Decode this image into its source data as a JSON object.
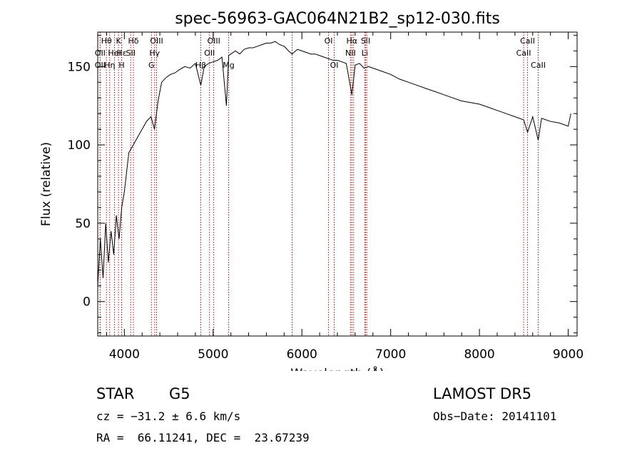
{
  "chart_data": {
    "type": "line",
    "title": "spec-56963-GAC064N21B2_sp12-030.fits",
    "xlabel": "Wavelength (Å)",
    "ylabel": "Flux (relative)",
    "xlim": [
      3700,
      9100
    ],
    "ylim": [
      -22,
      172
    ],
    "xticks": [
      4000,
      5000,
      6000,
      7000,
      8000,
      9000
    ],
    "yticks": [
      0,
      50,
      100,
      150
    ],
    "grid": false,
    "series": [
      {
        "x": [
          3700,
          3730,
          3760,
          3790,
          3820,
          3850,
          3880,
          3910,
          3940,
          3970,
          4000,
          4050,
          4100,
          4150,
          4200,
          4250,
          4300,
          4340,
          4380,
          4420,
          4470,
          4520,
          4570,
          4620,
          4680,
          4740,
          4800,
          4861,
          4900,
          4950,
          5000,
          5050,
          5100,
          5150,
          5175,
          5200,
          5250,
          5300,
          5350,
          5400,
          5450,
          5500,
          5550,
          5600,
          5650,
          5700,
          5750,
          5800,
          5850,
          5890,
          5950,
          6000,
          6050,
          6100,
          6150,
          6200,
          6250,
          6300,
          6350,
          6400,
          6450,
          6500,
          6563,
          6600,
          6650,
          6700,
          6750,
          6800,
          6900,
          7000,
          7100,
          7200,
          7300,
          7400,
          7500,
          7600,
          7700,
          7800,
          7900,
          8000,
          8100,
          8200,
          8300,
          8400,
          8498,
          8542,
          8600,
          8662,
          8700,
          8800,
          8900,
          8950,
          9000,
          9030
        ],
        "y": [
          10,
          40,
          15,
          50,
          25,
          45,
          30,
          55,
          40,
          60,
          70,
          95,
          100,
          105,
          110,
          115,
          118,
          110,
          128,
          140,
          143,
          145,
          146,
          148,
          150,
          149,
          152,
          138,
          150,
          152,
          153,
          154,
          156,
          125,
          157,
          158,
          160,
          158,
          161,
          162,
          162,
          163,
          164,
          165,
          165,
          166,
          164,
          163,
          160,
          158,
          161,
          160,
          159,
          158,
          158,
          157,
          156,
          155,
          154,
          154,
          153,
          152,
          132,
          151,
          152,
          149,
          150,
          149,
          147,
          145,
          142,
          140,
          138,
          136,
          134,
          132,
          130,
          128,
          127,
          126,
          124,
          122,
          120,
          118,
          116,
          108,
          118,
          103,
          117,
          115,
          114,
          113,
          112,
          120
        ]
      }
    ],
    "lines": [
      {
        "label": "Hδ",
        "w": 4102,
        "row": 0
      },
      {
        "label": "K",
        "w": 3934,
        "row": 0
      },
      {
        "label": "H",
        "w": 3969,
        "row": 2
      },
      {
        "label": "Hε",
        "w": 3970,
        "row": 1
      },
      {
        "label": "Hθ",
        "w": 3798,
        "row": 0
      },
      {
        "label": "Hη",
        "w": 3835,
        "row": 2
      },
      {
        "label": "OII",
        "w": 3727,
        "row": 2
      },
      {
        "label": "OII",
        "w": 3727,
        "row": 1
      },
      {
        "label": "HeI",
        "w": 3889,
        "row": 1
      },
      {
        "label": "SII",
        "w": 4072,
        "row": 1
      },
      {
        "label": "OIII",
        "w": 4363,
        "row": 0
      },
      {
        "label": "Hγ",
        "w": 4341,
        "row": 1
      },
      {
        "label": "G",
        "w": 4305,
        "row": 2
      },
      {
        "label": "OIII",
        "w": 5007,
        "row": 0
      },
      {
        "label": "OII",
        "w": 4959,
        "row": 1
      },
      {
        "label": "Hβ",
        "w": 4861,
        "row": 2
      },
      {
        "label": "Mg",
        "w": 5175,
        "row": 2
      },
      {
        "label": "OI",
        "w": 6300,
        "row": 0
      },
      {
        "label": "OI",
        "w": 6364,
        "row": 2
      },
      {
        "label": "Hα",
        "w": 6563,
        "row": 0
      },
      {
        "label": "NII",
        "w": 6548,
        "row": 1
      },
      {
        "label": "SII",
        "w": 6717,
        "row": 0
      },
      {
        "label": "Li",
        "w": 6708,
        "row": 1
      },
      {
        "label": "CaII",
        "w": 8542,
        "row": 0
      },
      {
        "label": "CaII",
        "w": 8498,
        "row": 1
      },
      {
        "label": "CaII",
        "w": 8662,
        "row": 2
      },
      {
        "label": "",
        "w": 5890,
        "row": 3
      },
      {
        "label": "",
        "w": 6583,
        "row": 3
      },
      {
        "label": "",
        "w": 6731,
        "row": 3
      }
    ]
  },
  "info": {
    "object_type": "STAR",
    "subclass": "G5",
    "cz": "cz = −31.2 ± 6.6 km/s",
    "coords": "RA =  66.11241, DEC =  23.67239",
    "survey": "LAMOST DR5",
    "obs_date": "Obs−Date: 20141101"
  }
}
